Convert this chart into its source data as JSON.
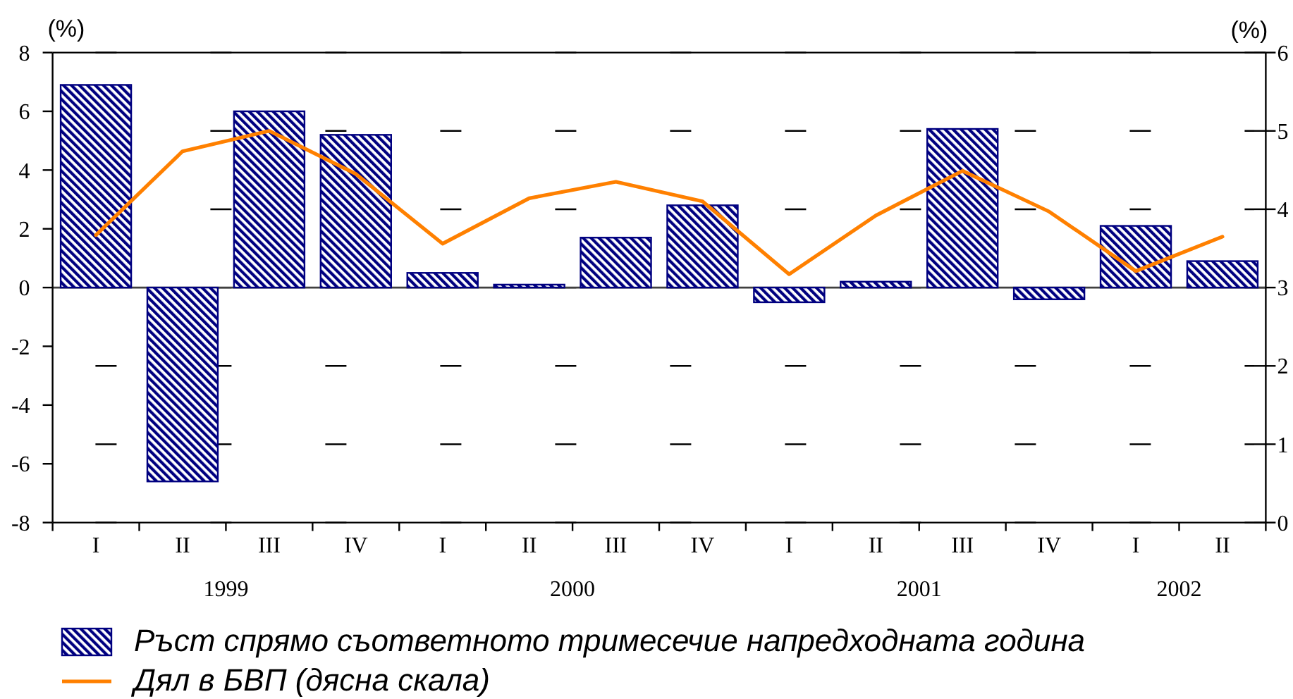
{
  "chart_data": {
    "type": "bar",
    "categories": [
      "I",
      "II",
      "III",
      "IV",
      "I",
      "II",
      "III",
      "IV",
      "I",
      "II",
      "III",
      "IV",
      "I",
      "II"
    ],
    "series": [
      {
        "name": "Ръст спрямо съответното тримесечие напредходната година",
        "color": "#000080",
        "values": [
          6.9,
          -6.6,
          6.0,
          5.2,
          0.5,
          0.1,
          1.7,
          2.8,
          -0.5,
          0.2,
          5.4,
          -0.4,
          2.1,
          0.9
        ]
      },
      {
        "name": "Дял в БВП (дясна скала)",
        "type": "line",
        "axis": "y2",
        "color": "#ff8000",
        "values": [
          3.67,
          4.74,
          5.0,
          4.45,
          3.56,
          4.14,
          4.35,
          4.1,
          3.17,
          3.92,
          4.49,
          3.97,
          3.21,
          3.65
        ]
      }
    ],
    "ylabel": "(%)",
    "y2label": "(%)",
    "ylim": [
      -8,
      8
    ],
    "yticks": [
      -8,
      -6,
      -4,
      -2,
      0,
      2,
      4,
      6,
      8
    ],
    "y2lim": [
      0,
      6
    ],
    "y2ticks": [
      0,
      1,
      2,
      3,
      4,
      5,
      6
    ],
    "grid": "y2",
    "legend": "bottom left",
    "annotations": [
      "1999",
      "2000",
      "2001",
      "2002"
    ]
  }
}
